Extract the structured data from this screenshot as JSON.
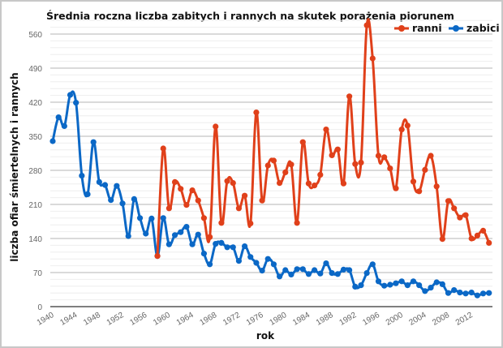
{
  "chart_data": {
    "type": "line",
    "title": "Średnia roczna liczba zabitych i rannych na skutek porażenia piorunem",
    "xlabel": "rok",
    "ylabel": "liczba ofiar śmiertelnych i rannych",
    "xlim": [
      1940,
      2015
    ],
    "ylim": [
      0,
      588
    ],
    "x_ticks": [
      "1940",
      "1944",
      "1948",
      "1952",
      "1956",
      "1960",
      "1964",
      "1968",
      "1972",
      "1976",
      "1980",
      "1984",
      "1988",
      "1992",
      "1996",
      "2000",
      "2004",
      "2008",
      "2012"
    ],
    "y_ticks": [
      "0",
      "70",
      "140",
      "210",
      "280",
      "350",
      "420",
      "490",
      "560"
    ],
    "grid": true,
    "legend_position": "top-right",
    "series": [
      {
        "name": "ranni",
        "color": "#e0401a",
        "start_year": 1958,
        "values": [
          104,
          325,
          202,
          256,
          242,
          209,
          239,
          218,
          182,
          143,
          370,
          172,
          258,
          254,
          202,
          228,
          171,
          399,
          218,
          290,
          300,
          254,
          276,
          292,
          172,
          338,
          253,
          249,
          271,
          364,
          311,
          323,
          253,
          432,
          293,
          296,
          578,
          510,
          310,
          307,
          284,
          243,
          364,
          372,
          257,
          237,
          281,
          310,
          247,
          139,
          217,
          202,
          183,
          188,
          140,
          146,
          156,
          131
        ]
      },
      {
        "name": "zabici",
        "color": "#0b68c6",
        "start_year": 1940,
        "values": [
          340,
          389,
          371,
          435,
          419,
          269,
          231,
          338,
          256,
          250,
          219,
          248,
          212,
          145,
          221,
          182,
          150,
          181,
          104,
          182,
          128,
          147,
          153,
          164,
          128,
          148,
          109,
          87,
          129,
          131,
          122,
          122,
          94,
          124,
          102,
          90,
          74,
          98,
          87,
          62,
          75,
          66,
          77,
          77,
          67,
          75,
          68,
          89,
          69,
          67,
          76,
          75,
          41,
          44,
          69,
          87,
          52,
          43,
          45,
          48,
          52,
          44,
          52,
          44,
          32,
          39,
          50,
          46,
          28,
          34,
          29,
          27,
          29,
          23,
          27,
          28
        ]
      }
    ]
  }
}
